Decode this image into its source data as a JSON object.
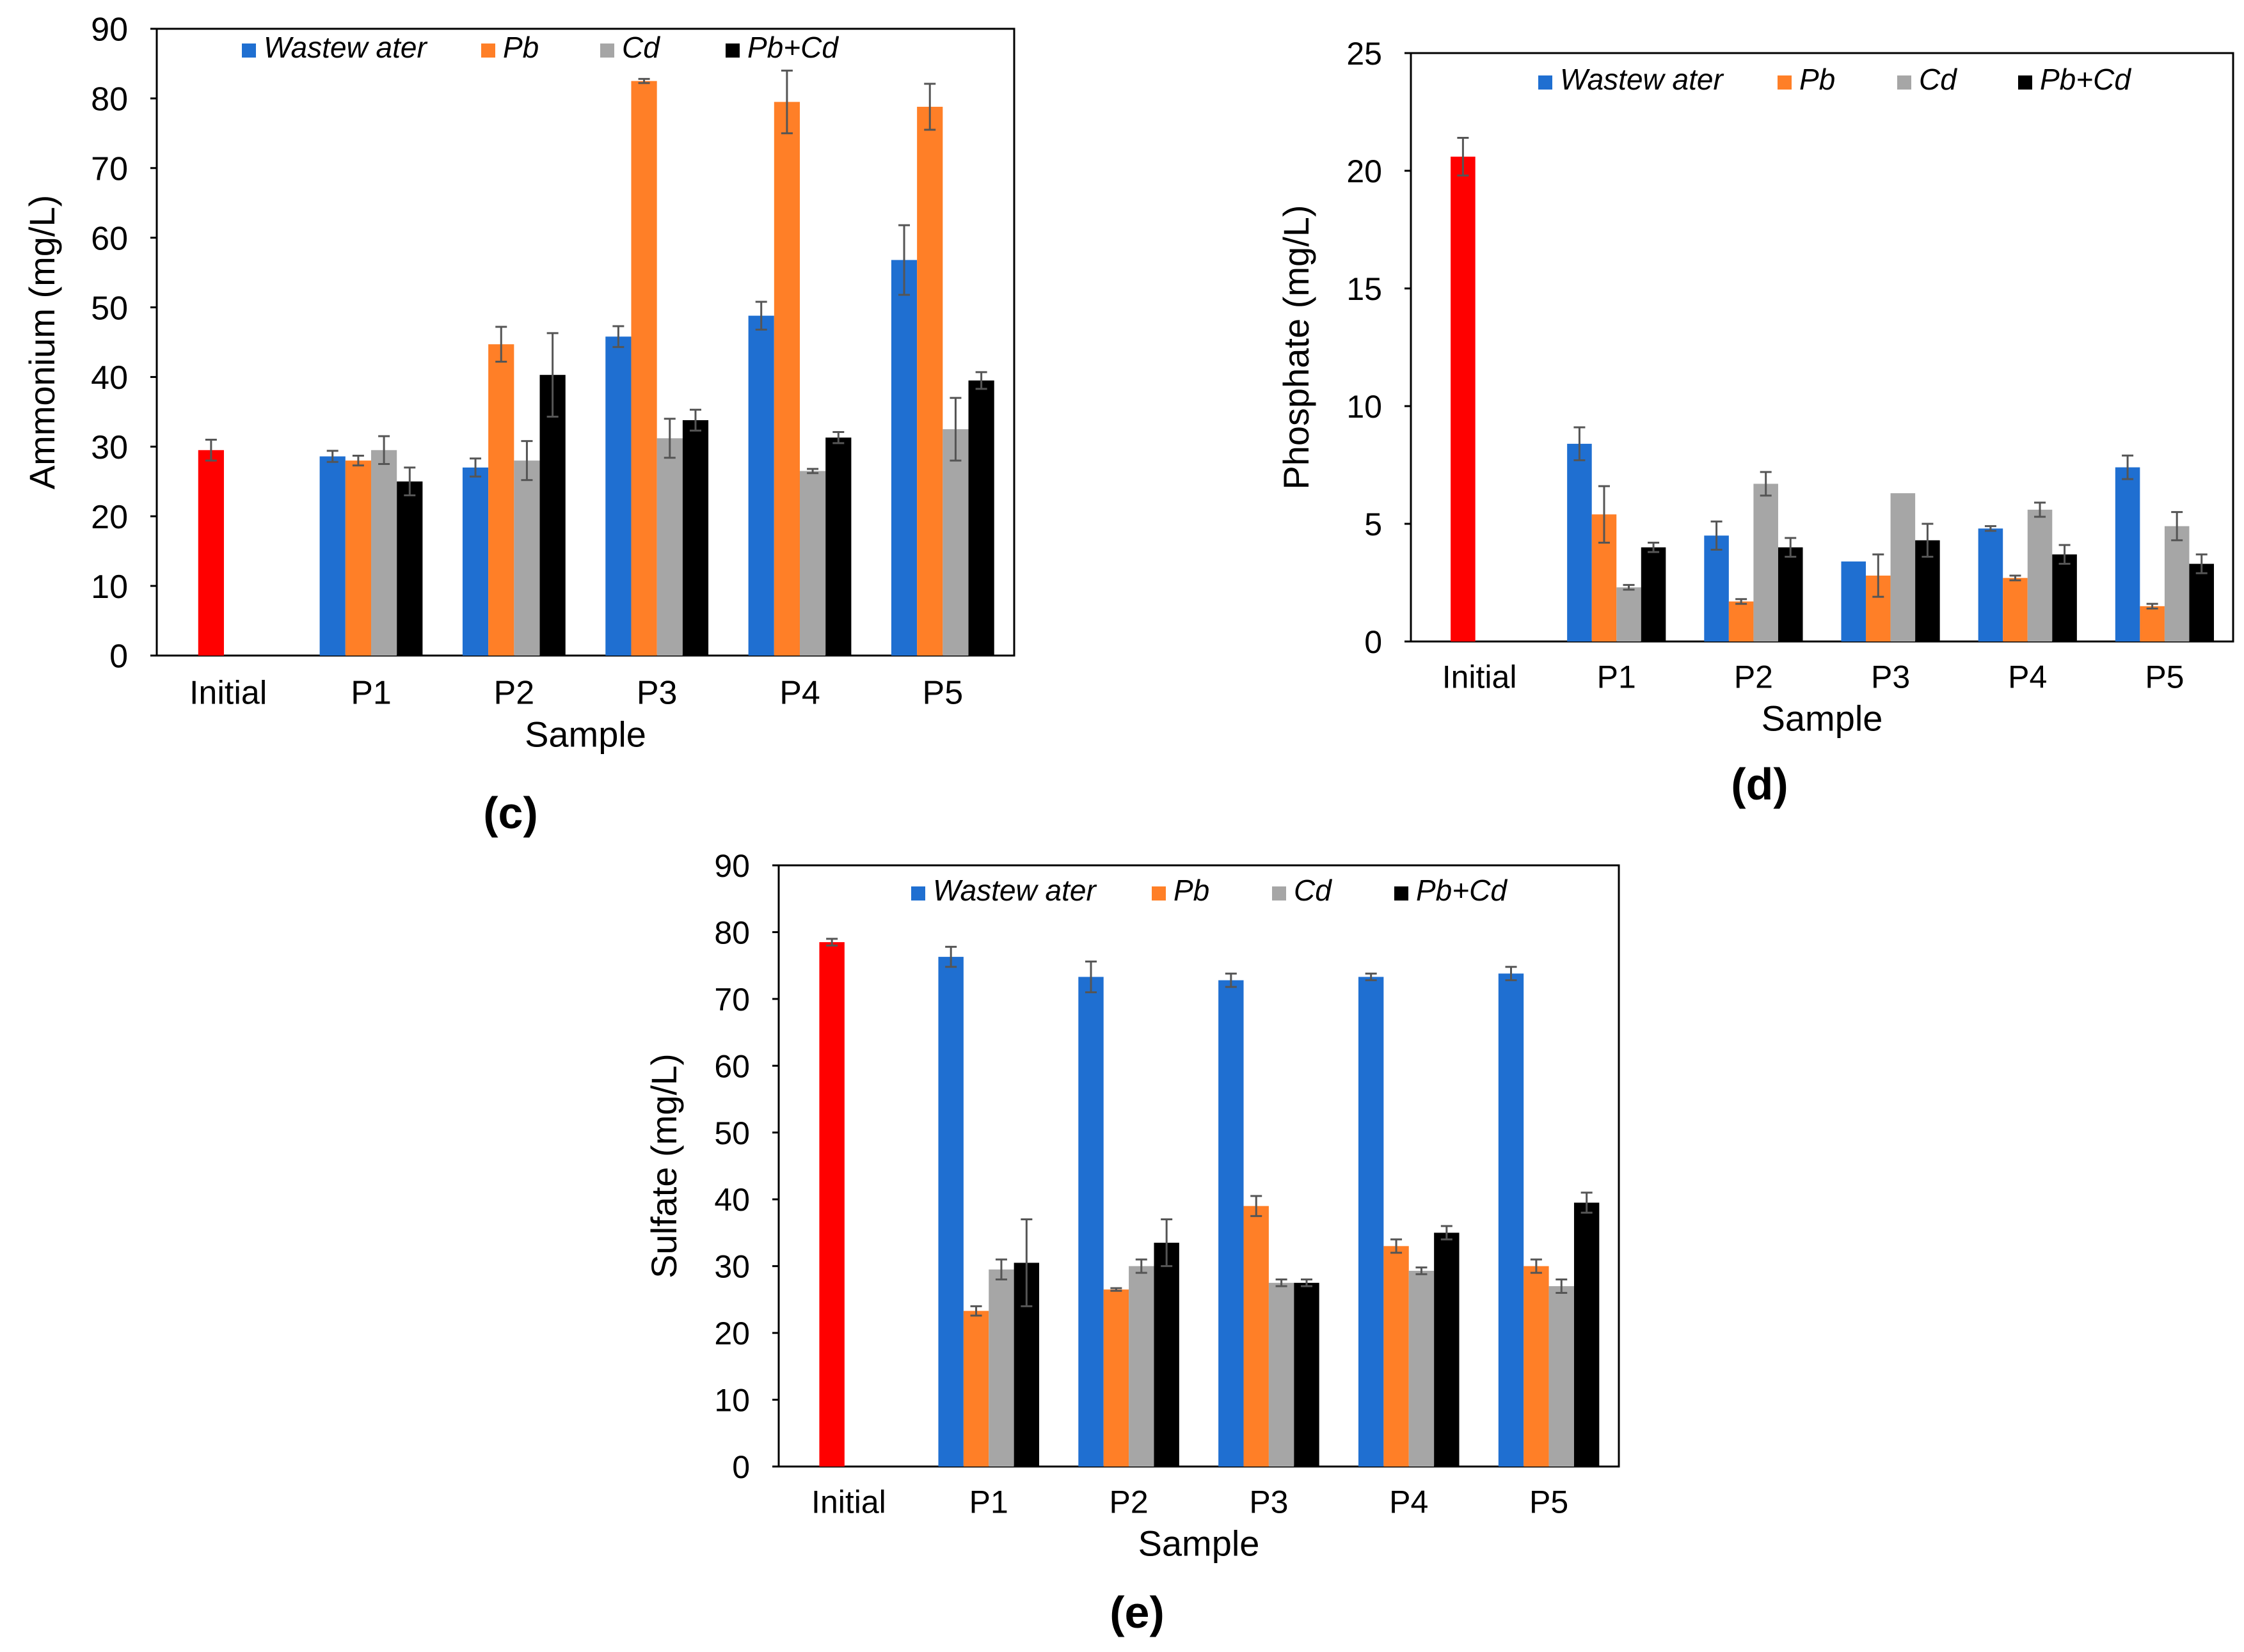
{
  "figure": {
    "captions": [
      "(c)",
      "(d)",
      "(e)"
    ]
  },
  "chart_data": [
    {
      "type": "bar",
      "panel": "(c)",
      "title": "",
      "xlabel": "Sample",
      "ylabel": "Ammonium  (mg/L)",
      "ylim": [
        0,
        90
      ],
      "yticks": [
        0,
        10,
        20,
        30,
        40,
        50,
        60,
        70,
        80,
        90
      ],
      "categories": [
        "Initial",
        "P1",
        "P2",
        "P3",
        "P4",
        "P5"
      ],
      "initial": {
        "value": 29.5,
        "error": 1.5,
        "color": "#ff0000"
      },
      "series": [
        {
          "name": "Wastew ater",
          "color": "#1f6fd1",
          "values": [
            null,
            28.6,
            27.0,
            45.8,
            48.8,
            56.8
          ],
          "errors": [
            null,
            0.8,
            1.3,
            1.5,
            2.0,
            5.0
          ]
        },
        {
          "name": "Pb",
          "color": "#ff7f27",
          "values": [
            null,
            28.0,
            44.7,
            82.5,
            79.5,
            78.8
          ],
          "errors": [
            null,
            0.7,
            2.5,
            0.3,
            4.5,
            3.3
          ]
        },
        {
          "name": "Cd",
          "color": "#a6a6a6",
          "values": [
            null,
            29.5,
            28.0,
            31.2,
            26.5,
            32.5
          ],
          "errors": [
            null,
            2.0,
            2.8,
            2.8,
            0.3,
            4.5
          ]
        },
        {
          "name": "Pb+Cd",
          "color": "#000000",
          "values": [
            null,
            25.0,
            40.3,
            33.8,
            31.3,
            39.5
          ],
          "errors": [
            null,
            2.0,
            6.0,
            1.5,
            0.8,
            1.2
          ]
        }
      ],
      "legend": "top, inside plot area"
    },
    {
      "type": "bar",
      "panel": "(d)",
      "title": "",
      "xlabel": "Sample",
      "ylabel": "Phosphate  (mg/L)",
      "ylim": [
        0,
        25
      ],
      "yticks": [
        0,
        5,
        10,
        15,
        20,
        25
      ],
      "categories": [
        "Initial",
        "P1",
        "P2",
        "P3",
        "P4",
        "P5"
      ],
      "initial": {
        "value": 20.6,
        "error": 0.8,
        "color": "#ff0000"
      },
      "series": [
        {
          "name": "Wastew ater",
          "color": "#1f6fd1",
          "values": [
            null,
            8.4,
            4.5,
            3.4,
            4.8,
            7.4
          ],
          "errors": [
            null,
            0.7,
            0.6,
            0.0,
            0.1,
            0.5
          ]
        },
        {
          "name": "Pb",
          "color": "#ff7f27",
          "values": [
            null,
            5.4,
            1.7,
            2.8,
            2.7,
            1.5
          ],
          "errors": [
            null,
            1.2,
            0.1,
            0.9,
            0.1,
            0.1
          ]
        },
        {
          "name": "Cd",
          "color": "#a6a6a6",
          "values": [
            null,
            2.3,
            6.7,
            6.3,
            5.6,
            4.9
          ],
          "errors": [
            null,
            0.1,
            0.5,
            0.0,
            0.3,
            0.6
          ]
        },
        {
          "name": "Pb+Cd",
          "color": "#000000",
          "values": [
            null,
            4.0,
            4.0,
            4.3,
            3.7,
            3.3
          ],
          "errors": [
            null,
            0.2,
            0.4,
            0.7,
            0.4,
            0.4
          ]
        }
      ],
      "legend": "top, inside plot area"
    },
    {
      "type": "bar",
      "panel": "(e)",
      "title": "",
      "xlabel": "Sample",
      "ylabel": "Sulfate  (mg/L)",
      "ylim": [
        0,
        90
      ],
      "yticks": [
        0,
        10,
        20,
        30,
        40,
        50,
        60,
        70,
        80,
        90
      ],
      "categories": [
        "Initial",
        "P1",
        "P2",
        "P3",
        "P4",
        "P5"
      ],
      "initial": {
        "value": 78.5,
        "error": 0.5,
        "color": "#ff0000"
      },
      "series": [
        {
          "name": "Wastew ater",
          "color": "#1f6fd1",
          "values": [
            null,
            76.3,
            73.3,
            72.8,
            73.3,
            73.8
          ],
          "errors": [
            null,
            1.5,
            2.3,
            1.0,
            0.5,
            1.0
          ]
        },
        {
          "name": "Pb",
          "color": "#ff7f27",
          "values": [
            null,
            23.3,
            26.5,
            39.0,
            33.0,
            30.0
          ],
          "errors": [
            null,
            0.7,
            0.2,
            1.5,
            1.0,
            1.0
          ]
        },
        {
          "name": "Cd",
          "color": "#a6a6a6",
          "values": [
            null,
            29.5,
            30.0,
            27.5,
            29.3,
            27.0
          ],
          "errors": [
            null,
            1.5,
            1.0,
            0.5,
            0.5,
            1.0
          ]
        },
        {
          "name": "Pb+Cd",
          "color": "#000000",
          "values": [
            null,
            30.5,
            33.5,
            27.5,
            35.0,
            39.5
          ],
          "errors": [
            null,
            6.5,
            3.5,
            0.5,
            1.0,
            1.5
          ]
        }
      ],
      "legend": "top, inside plot area"
    }
  ]
}
